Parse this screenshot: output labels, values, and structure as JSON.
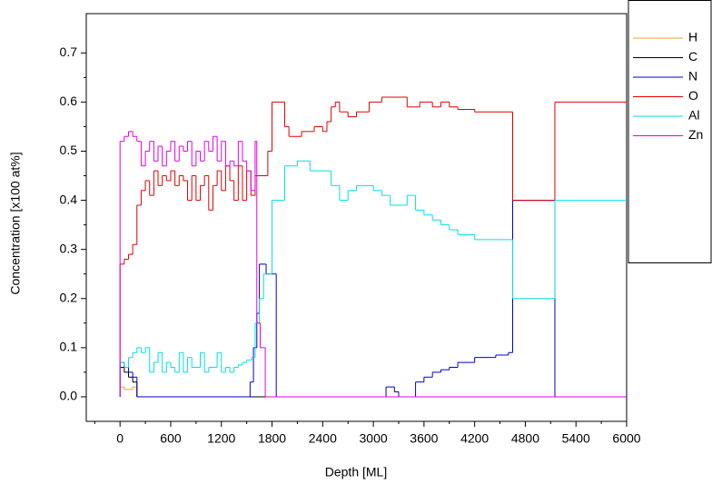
{
  "chart_data": {
    "type": "line",
    "step": true,
    "xlabel": "Depth [ML]",
    "ylabel": "Concentration [x100 at%]",
    "xlim": [
      -400,
      6000
    ],
    "ylim": [
      -0.05,
      0.78
    ],
    "xticks": [
      0,
      600,
      1200,
      1800,
      2400,
      3000,
      3600,
      4200,
      4800,
      5400,
      6000
    ],
    "yticks": [
      {
        "value": 0,
        "label": "0.0"
      },
      0.1,
      0.2,
      0.3,
      0.4,
      0.5,
      0.6,
      0.7
    ],
    "grid": false,
    "legend": "upper right outside",
    "series": [
      {
        "name": "H",
        "color": "#f0a030",
        "x": [
          0,
          50,
          150,
          200,
          6000
        ],
        "values": [
          0.02,
          0.015,
          0.02,
          0,
          0
        ]
      },
      {
        "name": "C",
        "color": "#000000",
        "x": [
          0,
          50,
          100,
          150,
          200,
          6000
        ],
        "values": [
          0.06,
          0.05,
          0.04,
          0.03,
          0,
          0
        ]
      },
      {
        "name": "N",
        "color": "#0000cc",
        "x": [
          0,
          50,
          100,
          150,
          200,
          1540,
          1580,
          1620,
          1650,
          1730,
          1850,
          3150,
          3250,
          3300,
          3500,
          3600,
          3700,
          3800,
          3900,
          4000,
          4200,
          4450,
          4600,
          4650,
          5150,
          6000
        ],
        "values": [
          0.07,
          0.06,
          0.05,
          0.04,
          0,
          0.03,
          0.1,
          0.17,
          0.27,
          0.25,
          0,
          0.02,
          0.01,
          0,
          0.03,
          0.04,
          0.05,
          0.055,
          0.06,
          0.07,
          0.08,
          0.085,
          0.09,
          0.4,
          0,
          0
        ]
      },
      {
        "name": "O",
        "color": "#e00000",
        "x": [
          0,
          50,
          100,
          150,
          200,
          250,
          300,
          350,
          400,
          450,
          500,
          550,
          600,
          650,
          700,
          750,
          800,
          850,
          900,
          950,
          1000,
          1050,
          1100,
          1150,
          1200,
          1250,
          1300,
          1350,
          1400,
          1450,
          1500,
          1550,
          1600,
          1750,
          1800,
          1950,
          2000,
          2150,
          2300,
          2400,
          2450,
          2500,
          2550,
          2600,
          2700,
          2800,
          2950,
          3100,
          3400,
          3550,
          3700,
          3800,
          3900,
          4000,
          4200,
          4650,
          5150,
          6000
        ],
        "values": [
          0.27,
          0.28,
          0.29,
          0.31,
          0.39,
          0.42,
          0.44,
          0.41,
          0.46,
          0.43,
          0.45,
          0.44,
          0.46,
          0.43,
          0.45,
          0.44,
          0.4,
          0.45,
          0.4,
          0.43,
          0.45,
          0.38,
          0.43,
          0.46,
          0.42,
          0.47,
          0.44,
          0.4,
          0.47,
          0.4,
          0.46,
          0.41,
          0.45,
          0.5,
          0.6,
          0.55,
          0.53,
          0.54,
          0.55,
          0.54,
          0.56,
          0.59,
          0.6,
          0.58,
          0.57,
          0.58,
          0.6,
          0.61,
          0.59,
          0.6,
          0.59,
          0.6,
          0.59,
          0.585,
          0.58,
          0.4,
          0.6,
          0.6
        ]
      },
      {
        "name": "Al",
        "color": "#00e0e0",
        "x": [
          0,
          50,
          100,
          150,
          200,
          250,
          300,
          350,
          400,
          450,
          500,
          550,
          600,
          650,
          700,
          750,
          800,
          850,
          900,
          950,
          1000,
          1050,
          1100,
          1150,
          1200,
          1250,
          1300,
          1350,
          1400,
          1450,
          1500,
          1560,
          1600,
          1650,
          1700,
          1800,
          1950,
          2100,
          2250,
          2500,
          2600,
          2700,
          2800,
          3000,
          3100,
          3200,
          3400,
          3500,
          3600,
          3700,
          3800,
          3900,
          4000,
          4200,
          4650,
          5150,
          6000
        ],
        "values": [
          0.07,
          0.06,
          0.08,
          0.09,
          0.1,
          0.09,
          0.1,
          0.05,
          0.07,
          0.09,
          0.05,
          0.07,
          0.06,
          0.05,
          0.09,
          0.05,
          0.08,
          0.06,
          0.06,
          0.09,
          0.05,
          0.06,
          0.06,
          0.09,
          0.05,
          0.06,
          0.05,
          0.06,
          0.065,
          0.07,
          0.075,
          0.08,
          0.15,
          0.2,
          0.25,
          0.4,
          0.47,
          0.48,
          0.46,
          0.43,
          0.4,
          0.42,
          0.43,
          0.42,
          0.41,
          0.39,
          0.41,
          0.38,
          0.37,
          0.36,
          0.35,
          0.34,
          0.33,
          0.32,
          0.2,
          0.4,
          0.4
        ]
      },
      {
        "name": "Zn",
        "color": "#e000e0",
        "x": [
          0,
          50,
          100,
          150,
          200,
          250,
          300,
          350,
          400,
          450,
          500,
          550,
          600,
          650,
          700,
          750,
          800,
          850,
          900,
          950,
          1000,
          1050,
          1100,
          1150,
          1200,
          1250,
          1300,
          1350,
          1400,
          1450,
          1500,
          1550,
          1600,
          1620,
          1660,
          1720,
          6000
        ],
        "values": [
          0.52,
          0.53,
          0.54,
          0.53,
          0.52,
          0.47,
          0.5,
          0.52,
          0.48,
          0.51,
          0.47,
          0.5,
          0.52,
          0.48,
          0.51,
          0.5,
          0.52,
          0.47,
          0.5,
          0.48,
          0.52,
          0.5,
          0.53,
          0.48,
          0.52,
          0.47,
          0.48,
          0.47,
          0.52,
          0.48,
          0.46,
          0.42,
          0.52,
          0.15,
          0.1,
          0,
          0
        ]
      }
    ]
  }
}
